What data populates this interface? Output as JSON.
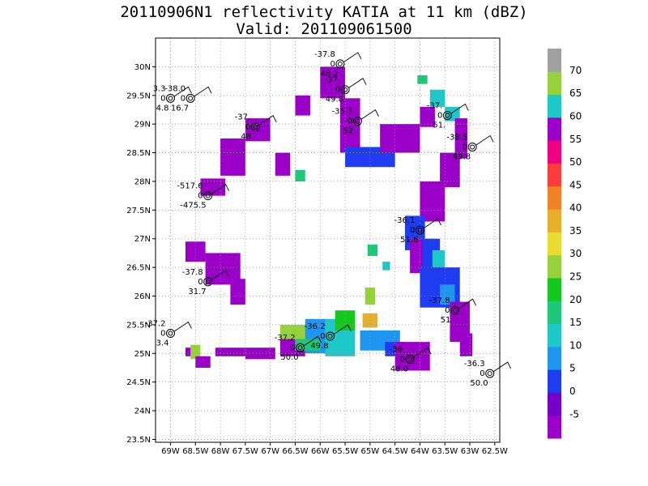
{
  "chart_data": {
    "type": "heatmap",
    "title": "20110906N1 reflectivity KATIA at 11 km (dBZ)",
    "subtitle": "Valid: 201109061500",
    "xlim": [
      -69.3,
      -62.4
    ],
    "ylim": [
      23.45,
      30.5
    ],
    "x_ticks": [
      {
        "v": -69,
        "label": "69W"
      },
      {
        "v": -68.5,
        "label": "68.5W"
      },
      {
        "v": -68,
        "label": "68W"
      },
      {
        "v": -67.5,
        "label": "67.5W"
      },
      {
        "v": -67,
        "label": "67W"
      },
      {
        "v": -66.5,
        "label": "66.5W"
      },
      {
        "v": -66,
        "label": "66W"
      },
      {
        "v": -65.5,
        "label": "65.5W"
      },
      {
        "v": -65,
        "label": "65W"
      },
      {
        "v": -64.5,
        "label": "64.5W"
      },
      {
        "v": -64,
        "label": "64W"
      },
      {
        "v": -63.5,
        "label": "63.5W"
      },
      {
        "v": -63,
        "label": "63W"
      },
      {
        "v": -62.5,
        "label": "62.5W"
      }
    ],
    "y_ticks": [
      {
        "v": 23.5,
        "label": "23.5N"
      },
      {
        "v": 24,
        "label": "24N"
      },
      {
        "v": 24.5,
        "label": "24.5N"
      },
      {
        "v": 25,
        "label": "25N"
      },
      {
        "v": 25.5,
        "label": "25.5N"
      },
      {
        "v": 26,
        "label": "26N"
      },
      {
        "v": 26.5,
        "label": "26.5N"
      },
      {
        "v": 27,
        "label": "27N"
      },
      {
        "v": 27.5,
        "label": "27.5N"
      },
      {
        "v": 28,
        "label": "28N"
      },
      {
        "v": 28.5,
        "label": "28.5N"
      },
      {
        "v": 29,
        "label": "29N"
      },
      {
        "v": 29.5,
        "label": "29.5N"
      },
      {
        "v": 30,
        "label": "30N"
      }
    ],
    "grid": true,
    "colorbar": {
      "placement": "right",
      "levels": [
        {
          "color": "#9a00c8",
          "label": "-5"
        },
        {
          "color": "#7600c8",
          "label": "0"
        },
        {
          "color": "#1f3cf0",
          "label": "5"
        },
        {
          "color": "#1e96f0",
          "label": "10"
        },
        {
          "color": "#1ec8c8",
          "label": "15"
        },
        {
          "color": "#1ec878",
          "label": "20"
        },
        {
          "color": "#14c81e",
          "label": "25"
        },
        {
          "color": "#96d23c",
          "label": "30"
        },
        {
          "color": "#e6dc32",
          "label": "35"
        },
        {
          "color": "#e6af2d",
          "label": "40"
        },
        {
          "color": "#f08228",
          "label": "45"
        },
        {
          "color": "#fa3c3c",
          "label": "50"
        },
        {
          "color": "#f00082",
          "label": "55"
        },
        {
          "color": "#9a00c8",
          "label": "60"
        },
        {
          "color": "#1ec8c8",
          "label": "65"
        },
        {
          "color": "#96d23c",
          "label": "70"
        },
        {
          "color": "#a0a0a0",
          "label": ""
        }
      ]
    },
    "cells": [
      {
        "x0": -66.5,
        "x1": -66.2,
        "y0": 29.5,
        "y1": 29.15,
        "level": 0
      },
      {
        "x0": -66.0,
        "x1": -65.5,
        "y0": 30.0,
        "y1": 29.45,
        "level": 0
      },
      {
        "x0": -65.6,
        "x1": -65.2,
        "y0": 29.45,
        "y1": 28.5,
        "level": 0
      },
      {
        "x0": -65.5,
        "x1": -64.5,
        "y0": 28.6,
        "y1": 28.25,
        "level": 2
      },
      {
        "x0": -64.8,
        "x1": -64.0,
        "y0": 29.0,
        "y1": 28.5,
        "level": 0
      },
      {
        "x0": -64.0,
        "x1": -63.7,
        "y0": 29.3,
        "y1": 28.95,
        "level": 0
      },
      {
        "x0": -63.8,
        "x1": -63.5,
        "y0": 29.6,
        "y1": 29.3,
        "level": 4
      },
      {
        "x0": -64.05,
        "x1": -63.85,
        "y0": 29.85,
        "y1": 29.7,
        "level": 5
      },
      {
        "x0": -63.5,
        "x1": -63.2,
        "y0": 29.3,
        "y1": 29.05,
        "level": 4
      },
      {
        "x0": -63.3,
        "x1": -63.05,
        "y0": 29.1,
        "y1": 28.4,
        "level": 0
      },
      {
        "x0": -63.6,
        "x1": -63.2,
        "y0": 28.5,
        "y1": 27.9,
        "level": 0
      },
      {
        "x0": -64.0,
        "x1": -63.5,
        "y0": 28.0,
        "y1": 27.3,
        "level": 0
      },
      {
        "x0": -64.3,
        "x1": -63.9,
        "y0": 27.4,
        "y1": 26.8,
        "level": 2
      },
      {
        "x0": -64.2,
        "x1": -63.7,
        "y0": 27.0,
        "y1": 26.4,
        "level": 0
      },
      {
        "x0": -63.95,
        "x1": -63.6,
        "y0": 27.0,
        "y1": 26.5,
        "level": 2
      },
      {
        "x0": -63.75,
        "x1": -63.5,
        "y0": 26.8,
        "y1": 26.45,
        "level": 4
      },
      {
        "x0": -64.0,
        "x1": -63.2,
        "y0": 26.5,
        "y1": 25.8,
        "level": 2
      },
      {
        "x0": -63.6,
        "x1": -63.3,
        "y0": 26.2,
        "y1": 25.85,
        "level": 3
      },
      {
        "x0": -63.4,
        "x1": -63.0,
        "y0": 25.9,
        "y1": 25.2,
        "level": 0
      },
      {
        "x0": -63.2,
        "x1": -62.95,
        "y0": 25.35,
        "y1": 24.95,
        "level": 0
      },
      {
        "x0": -68.0,
        "x1": -67.5,
        "y0": 28.75,
        "y1": 28.1,
        "level": 0
      },
      {
        "x0": -67.5,
        "x1": -67.0,
        "y0": 29.1,
        "y1": 28.7,
        "level": 0
      },
      {
        "x0": -66.9,
        "x1": -66.6,
        "y0": 28.5,
        "y1": 28.1,
        "level": 0
      },
      {
        "x0": -68.4,
        "x1": -67.9,
        "y0": 28.05,
        "y1": 27.75,
        "level": 0
      },
      {
        "x0": -66.5,
        "x1": -66.3,
        "y0": 28.2,
        "y1": 28.0,
        "level": 5
      },
      {
        "x0": -68.7,
        "x1": -68.3,
        "y0": 26.95,
        "y1": 26.6,
        "level": 0
      },
      {
        "x0": -68.3,
        "x1": -67.6,
        "y0": 26.75,
        "y1": 26.2,
        "level": 0
      },
      {
        "x0": -67.8,
        "x1": -67.5,
        "y0": 26.3,
        "y1": 25.85,
        "level": 0
      },
      {
        "x0": -68.7,
        "x1": -68.5,
        "y0": 25.1,
        "y1": 24.95,
        "level": 0
      },
      {
        "x0": -68.6,
        "x1": -68.4,
        "y0": 25.15,
        "y1": 24.9,
        "level": 7
      },
      {
        "x0": -68.5,
        "x1": -68.2,
        "y0": 24.95,
        "y1": 24.75,
        "level": 0
      },
      {
        "x0": -68.1,
        "x1": -67.5,
        "y0": 25.1,
        "y1": 24.95,
        "level": 0
      },
      {
        "x0": -67.5,
        "x1": -66.9,
        "y0": 25.1,
        "y1": 24.9,
        "level": 0
      },
      {
        "x0": -66.8,
        "x1": -66.3,
        "y0": 25.25,
        "y1": 24.95,
        "level": 0
      },
      {
        "x0": -66.8,
        "x1": -66.0,
        "y0": 25.5,
        "y1": 25.25,
        "level": 7
      },
      {
        "x0": -66.3,
        "x1": -65.8,
        "y0": 25.6,
        "y1": 25.0,
        "level": 3
      },
      {
        "x0": -65.9,
        "x1": -65.3,
        "y0": 25.6,
        "y1": 24.95,
        "level": 4
      },
      {
        "x0": -66.5,
        "x1": -66.0,
        "y0": 25.25,
        "y1": 25.05,
        "level": 5
      },
      {
        "x0": -65.7,
        "x1": -65.3,
        "y0": 25.75,
        "y1": 25.4,
        "level": 6
      },
      {
        "x0": -65.15,
        "x1": -64.85,
        "y0": 25.7,
        "y1": 25.45,
        "level": 9
      },
      {
        "x0": -65.1,
        "x1": -64.9,
        "y0": 26.15,
        "y1": 25.85,
        "level": 7
      },
      {
        "x0": -65.2,
        "x1": -64.4,
        "y0": 25.4,
        "y1": 25.05,
        "level": 3
      },
      {
        "x0": -64.7,
        "x1": -64.3,
        "y0": 25.2,
        "y1": 24.95,
        "level": 2
      },
      {
        "x0": -64.5,
        "x1": -63.8,
        "y0": 25.2,
        "y1": 24.7,
        "level": 0
      },
      {
        "x0": -65.05,
        "x1": -64.85,
        "y0": 26.9,
        "y1": 26.7,
        "level": 5
      },
      {
        "x0": -64.75,
        "x1": -64.6,
        "y0": 26.6,
        "y1": 26.45,
        "level": 4
      }
    ],
    "stations": [
      {
        "lon": -65.6,
        "lat": 30.05,
        "top": "-37.8",
        "bot": "48.2",
        "side": "left"
      },
      {
        "lon": -65.5,
        "lat": 29.6,
        "top": "-37.",
        "bot": "49.8",
        "side": "left"
      },
      {
        "lon": -68.6,
        "lat": 29.45,
        "top": "-38.0",
        "bot": "16.7",
        "side": "left"
      },
      {
        "lon": -69.0,
        "lat": 29.45,
        "top": "3.3",
        "bot": "4.8",
        "side": "left"
      },
      {
        "lon": -67.3,
        "lat": 28.95,
        "top": "-37.",
        "bot": "48.",
        "side": "left"
      },
      {
        "lon": -65.25,
        "lat": 29.05,
        "top": "-35.7",
        "bot": "52.",
        "side": "left"
      },
      {
        "lon": -63.45,
        "lat": 29.15,
        "top": "-37.",
        "bot": "51.",
        "side": "left"
      },
      {
        "lon": -62.95,
        "lat": 28.6,
        "top": "-38.5",
        "bot": "49.8",
        "side": "left"
      },
      {
        "lon": -68.25,
        "lat": 27.75,
        "top": "-517.6",
        "bot": "-475.5",
        "side": "left"
      },
      {
        "lon": -64.0,
        "lat": 27.15,
        "top": "-36.1",
        "bot": "51.6",
        "side": "left"
      },
      {
        "lon": -68.25,
        "lat": 26.25,
        "top": "-37.8",
        "bot": "31.7",
        "side": "left"
      },
      {
        "lon": -63.3,
        "lat": 25.75,
        "top": "-37.8",
        "bot": "51.",
        "side": "left"
      },
      {
        "lon": -69.0,
        "lat": 25.35,
        "top": "-37.2",
        "bot": "3.4",
        "side": "left"
      },
      {
        "lon": -65.8,
        "lat": 25.3,
        "top": "-36.2",
        "bot": "49.8",
        "side": "left"
      },
      {
        "lon": -66.4,
        "lat": 25.1,
        "top": "-37.2",
        "bot": "50.0",
        "side": "left"
      },
      {
        "lon": -64.2,
        "lat": 24.9,
        "top": "-36.",
        "bot": "48.0",
        "side": "left"
      },
      {
        "lon": -62.6,
        "lat": 24.65,
        "top": "-36.3",
        "bot": "50.0",
        "side": "left"
      }
    ]
  }
}
